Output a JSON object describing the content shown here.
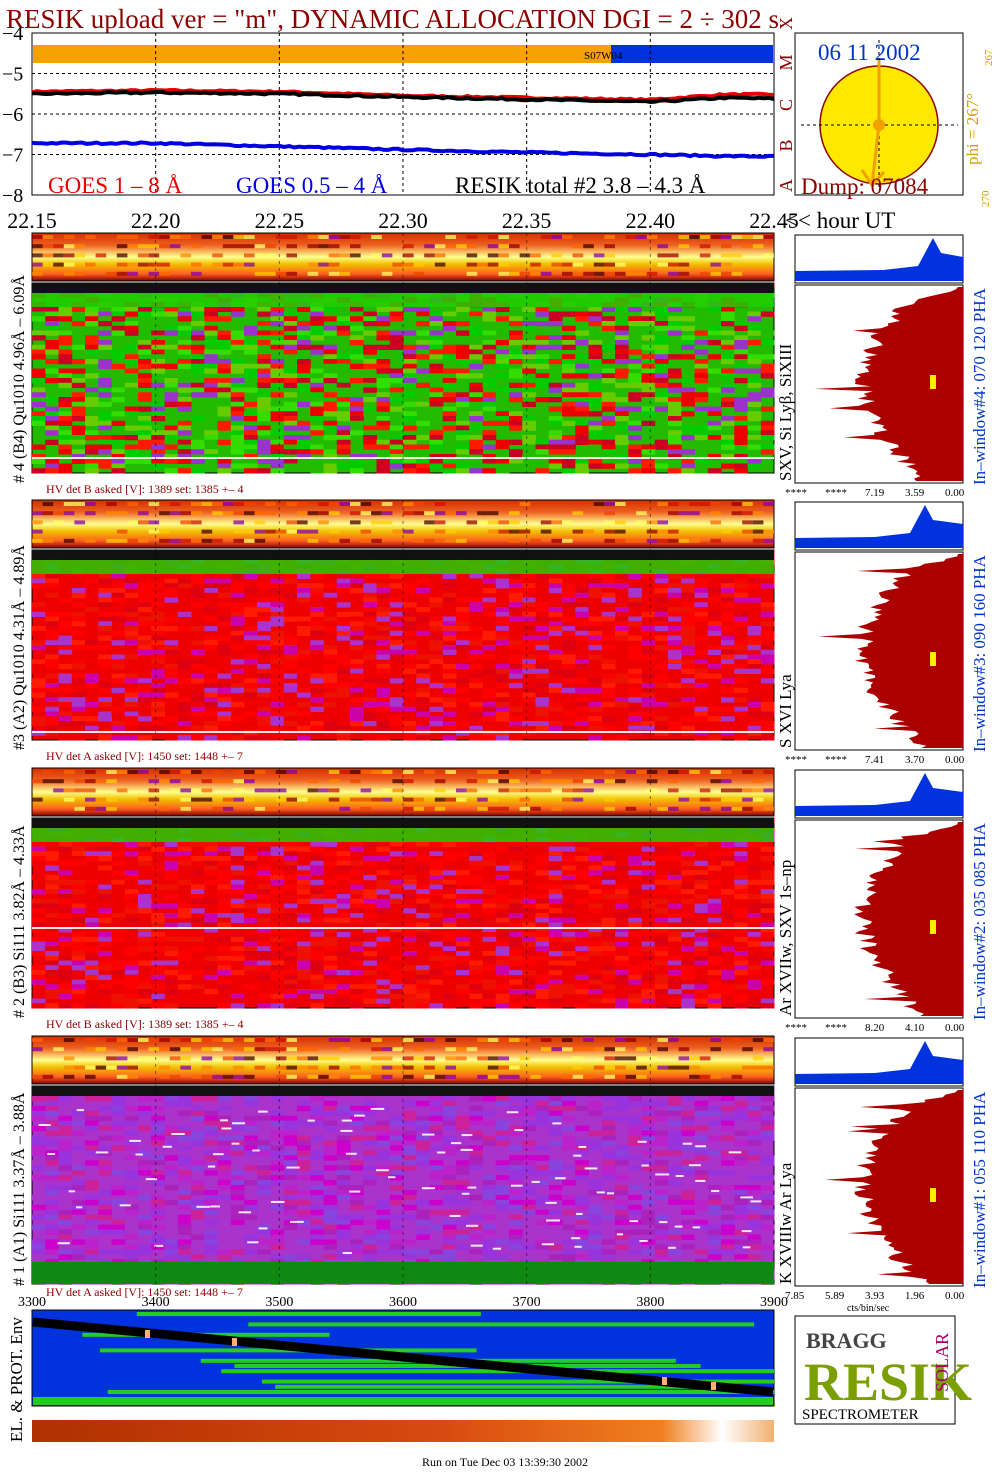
{
  "header": {
    "title": "RESIK upload ver = \"m\", DYNAMIC ALLOCATION  DGI =   2 ÷ 302 s",
    "title_color": "#8b0000"
  },
  "goes": {
    "legend_goes18": "GOES 1 – 8 Å",
    "legend_goes054": "GOES 0.5 – 4 Å",
    "legend_resik": "RESIK total #2  3.8 – 4.3 Å",
    "color_goes18": "#e60000",
    "color_goes054": "#0000e0",
    "color_resik": "#000000",
    "flare_classes": [
      "A",
      "B",
      "C",
      "M",
      "X"
    ],
    "status_label": "S07W04",
    "status_colors": {
      "orange": "#f5a100",
      "blue": "#0033dd"
    }
  },
  "sun": {
    "date": "06 11 2002",
    "dump": "Dump: 07084",
    "phi": "phi = 267°",
    "phi_small": "267",
    "angle_label": "270",
    "disk_color": "#ffe800"
  },
  "time_axis": {
    "ticks": [
      "22.15",
      "22.20",
      "22.25",
      "22.30",
      "22.35",
      "22.40",
      "22.45"
    ],
    "unit_label": "<< hour UT"
  },
  "panels": [
    {
      "left_label": "# 4 (B4) Qu1010 4.96Å – 6.09Å",
      "lines_label": "SXV, Si Lyβ, SiXIII",
      "window_label": "In–window#4:  070 120 PHA",
      "hv_text": "HV det B asked [V]:  1389 set:  1385 +–    4",
      "pha_scale": [
        "****",
        "****",
        "7.19",
        "3.59",
        "0.00"
      ],
      "base_color": "green"
    },
    {
      "left_label": "#3 (A2) Qu1010  4.31Å – 4.89Å",
      "lines_label": "S XVI Lya",
      "window_label": "In–window#3:  090 160 PHA",
      "hv_text": "HV det A asked [V]:  1450 set:  1448 +–    7",
      "pha_scale": [
        "****",
        "****",
        "7.41",
        "3.70",
        "0.00"
      ],
      "base_color": "red"
    },
    {
      "left_label": "# 2 (B3) Si111  3.82Å – 4.33Å",
      "lines_label": "Ar XVIIw,  SXV 1s–np",
      "window_label": "In–window#2:  035 085 PHA",
      "hv_text": "HV det B asked [V]:  1389 set:  1385 +–    4",
      "pha_scale": [
        "****",
        "****",
        "8.20",
        "4.10",
        "0.00"
      ],
      "base_color": "red"
    },
    {
      "left_label": "# 1 (A1) Si111  3.37Å – 3.88Å",
      "lines_label": "K XVIIIw  Ar Lya",
      "window_label": "In–window#1:  055 110 PHA",
      "hv_text": "HV det A asked [V]:  1450 set:  1448 +–    7",
      "pha_scale": [
        "7.85",
        "5.89",
        "3.93",
        "1.96",
        "0.00"
      ],
      "pha_unit": "cts/bin/sec",
      "base_color": "magenta"
    }
  ],
  "bottom": {
    "ticks": [
      "3300",
      "3400",
      "3500",
      "3600",
      "3700",
      "3800",
      "3900"
    ],
    "env_label": "EL. & PROT. Env",
    "run_text": "Run on Tue Dec 03 13:39:30 2002"
  },
  "logo": {
    "text_bragg": "BRAGG",
    "text_resik": "RESIK",
    "text_solar": "SOLAR",
    "text_spectrometer": "SPECTROMETER"
  },
  "chart_data": {
    "type": "line",
    "title": "RESIK upload ver = \"m\", DYNAMIC ALLOCATION  DGI =   2 ÷ 302 s",
    "xlabel": "hour UT",
    "ylabel": "",
    "xlim": [
      22.15,
      22.45
    ],
    "ylim": [
      -8,
      -4
    ],
    "x": [
      22.15,
      22.2,
      22.25,
      22.3,
      22.35,
      22.4,
      22.43,
      22.45
    ],
    "series": [
      {
        "name": "GOES 1 – 8 Å",
        "color": "#e60000",
        "values": [
          -5.45,
          -5.42,
          -5.45,
          -5.55,
          -5.6,
          -5.65,
          -5.52,
          -5.52
        ]
      },
      {
        "name": "RESIK total #2  3.8 – 4.3 Å",
        "color": "#000000",
        "values": [
          -5.5,
          -5.47,
          -5.5,
          -5.58,
          -5.64,
          -5.7,
          -5.6,
          -5.62
        ]
      },
      {
        "name": "GOES 0.5 – 4 Å",
        "color": "#0000e0",
        "values": [
          -6.72,
          -6.72,
          -6.8,
          -6.88,
          -6.95,
          -7.0,
          -7.04,
          -7.05
        ]
      }
    ]
  }
}
